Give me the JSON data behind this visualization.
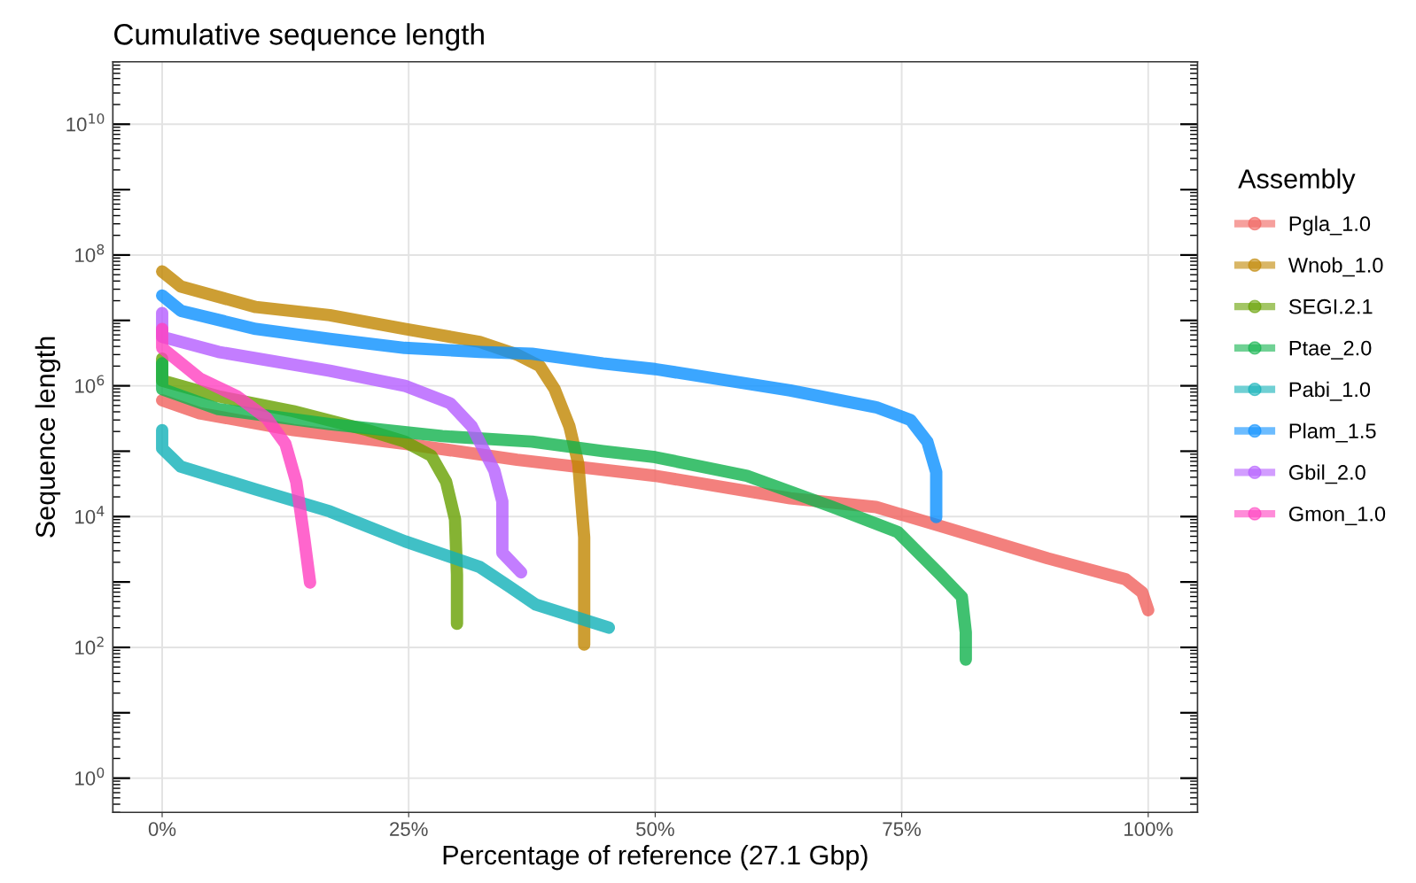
{
  "chart_data": {
    "type": "line",
    "title": "Cumulative sequence length",
    "xlabel": "Percentage of reference (27.1 Gbp)",
    "ylabel": "Sequence length",
    "legend_title": "Assembly",
    "legend": "right",
    "grid": true,
    "log": "y",
    "xlim": [
      -5,
      105
    ],
    "xticks": [
      {
        "value": 0,
        "label": "0%"
      },
      {
        "value": 25,
        "label": "25%"
      },
      {
        "value": 50,
        "label": "50%"
      },
      {
        "value": 75,
        "label": "75%"
      },
      {
        "value": 100,
        "label": "100%"
      }
    ],
    "ylim": [
      0.3,
      90000000000
    ],
    "yticks": [
      {
        "value": 1,
        "label": "10$^{0}$"
      },
      {
        "value": 10,
        "label": null
      },
      {
        "value": 100,
        "label": "10$^{2}$"
      },
      {
        "value": 1000,
        "label": null
      },
      {
        "value": 10000,
        "label": "10$^{4}$"
      },
      {
        "value": 100000,
        "label": null
      },
      {
        "value": 1000000,
        "label": "10$^{6}$"
      },
      {
        "value": 10000000,
        "label": null
      },
      {
        "value": 100000000,
        "label": "10$^{8}$"
      },
      {
        "value": 1000000000,
        "label": null
      },
      {
        "value": 10000000000,
        "label": "10$^{10}$"
      }
    ],
    "series": [
      {
        "name": "Pgla_1.0",
        "color": "#f0605c",
        "x": [
          0,
          3.8,
          13.3,
          24.6,
          36,
          50,
          63.7,
          72.4,
          78.9,
          89.8,
          97.7,
          99.4,
          100
        ],
        "values": [
          600000,
          380000,
          210000,
          130000,
          74000,
          42000,
          19000,
          14000,
          7200,
          2300,
          1100,
          690,
          370
        ]
      },
      {
        "name": "Wnob_1.0",
        "color": "#c08600",
        "x": [
          0,
          1.9,
          9.5,
          17,
          24.6,
          32.2,
          36,
          38.3,
          39.8,
          41.3,
          42.2,
          42.8,
          42.8
        ],
        "values": [
          56000000,
          33000000,
          16000000,
          12000000,
          7400000,
          4700000,
          3000000,
          2000000,
          890000,
          240000,
          65000,
          4800,
          110
        ]
      },
      {
        "name": "SEGI.2.1",
        "color": "#66a000",
        "x": [
          0,
          0,
          5.7,
          13.3,
          20.8,
          24.6,
          27.3,
          28.8,
          29.7,
          29.9,
          29.9
        ],
        "values": [
          2600000,
          1200000,
          690000,
          410000,
          210000,
          140000,
          85000,
          34000,
          9100,
          1300,
          230
        ]
      },
      {
        "name": "Ptae_2.0",
        "color": "#10b24c",
        "x": [
          0,
          0,
          5.7,
          17,
          28.4,
          37.5,
          44.7,
          50,
          59.3,
          68,
          74.6,
          78.9,
          81.1,
          81.5,
          81.5
        ],
        "values": [
          2200000,
          890000,
          440000,
          260000,
          170000,
          140000,
          100000,
          81000,
          42000,
          14000,
          5800,
          1300,
          590,
          170,
          65
        ]
      },
      {
        "name": "Pabi_1.0",
        "color": "#10b0b8",
        "x": [
          0,
          0,
          1.9,
          9.5,
          17,
          24.6,
          32.2,
          35.2,
          37.9,
          45.3
        ],
        "values": [
          210000,
          110000,
          58000,
          26000,
          12000,
          4200,
          1700,
          850,
          450,
          200
        ]
      },
      {
        "name": "Plam_1.5",
        "color": "#0a90ff",
        "x": [
          0,
          1.9,
          9.5,
          17,
          24.6,
          32.2,
          37.5,
          44.7,
          50,
          63.7,
          72.4,
          75.9,
          77.6,
          78.5,
          78.5
        ],
        "values": [
          24000000,
          14000000,
          7400000,
          5200000,
          3800000,
          3300000,
          3100000,
          2200000,
          1800000,
          850000,
          470000,
          300000,
          140000,
          48000,
          9800
        ]
      },
      {
        "name": "Gbil_2.0",
        "color": "#b45cff",
        "x": [
          0,
          0,
          5.7,
          17,
          24.6,
          29.2,
          31.4,
          33.7,
          34.5,
          34.5,
          36.4
        ],
        "values": [
          13000000,
          5600000,
          3300000,
          1700000,
          1000000,
          540000,
          240000,
          50000,
          17000,
          2800,
          1400
        ]
      },
      {
        "name": "Gmon_1.0",
        "color": "#ff40c0",
        "x": [
          0,
          0,
          3.8,
          7.6,
          10.6,
          12.5,
          13.6,
          14.4,
          15
        ],
        "values": [
          7400000,
          3800000,
          1300000,
          690000,
          320000,
          130000,
          34000,
          4800,
          980
        ]
      }
    ]
  }
}
